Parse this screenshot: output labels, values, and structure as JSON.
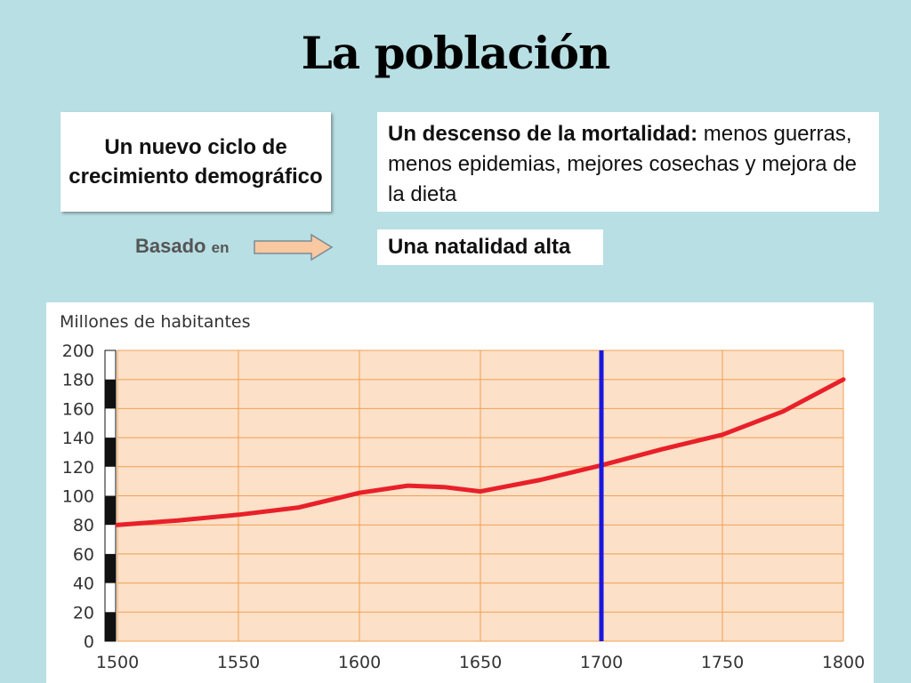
{
  "slide": {
    "title": "La población",
    "box_left": "Un nuevo ciclo de crecimiento demográfico",
    "box_right_bold": "Un descenso de la mortalidad:",
    "box_right_rest": " menos guerras, menos epidemias, mejores cosechas y mejora de la dieta",
    "basado": "Basado",
    "en": "en",
    "natalidad": "Una natalidad alta"
  },
  "chart_data": {
    "type": "line",
    "title": "",
    "ylabel": "Millones de habitantes",
    "xlabel": "",
    "xlim": [
      1500,
      1800
    ],
    "ylim": [
      0,
      200
    ],
    "x_ticks": [
      1500,
      1550,
      1600,
      1650,
      1700,
      1750,
      1800
    ],
    "y_ticks": [
      0,
      20,
      40,
      60,
      80,
      100,
      120,
      140,
      160,
      180,
      200
    ],
    "grid": true,
    "series": [
      {
        "color": "#e8202a",
        "x": [
          1500,
          1525,
          1550,
          1575,
          1600,
          1620,
          1635,
          1650,
          1675,
          1700,
          1725,
          1750,
          1775,
          1800
        ],
        "y": [
          80,
          83,
          87,
          92,
          102,
          107,
          106,
          103,
          111,
          121,
          132,
          142,
          158,
          180
        ]
      }
    ],
    "marker_line": {
      "x": 1700,
      "color": "#1a18e0"
    },
    "colors": {
      "plot_bg": "#fce0c8",
      "grid": "#f0a050",
      "axis_bar": "#111111"
    }
  }
}
